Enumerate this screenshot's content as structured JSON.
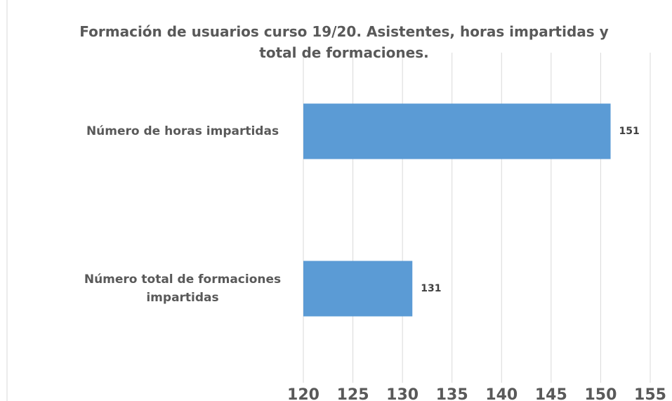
{
  "chart_data": {
    "type": "bar",
    "orientation": "horizontal",
    "title": "Formación de usuarios curso 19/20. Asistentes, horas impartidas y total de formaciones.",
    "categories": [
      "Número de horas impartidas",
      "Número total de formaciones impartidas"
    ],
    "values": [
      151,
      131
    ],
    "color": "#5b9bd5",
    "xlim": [
      120,
      155
    ],
    "xticks": [
      120,
      125,
      130,
      135,
      140,
      145,
      150,
      155
    ],
    "grid": true
  }
}
